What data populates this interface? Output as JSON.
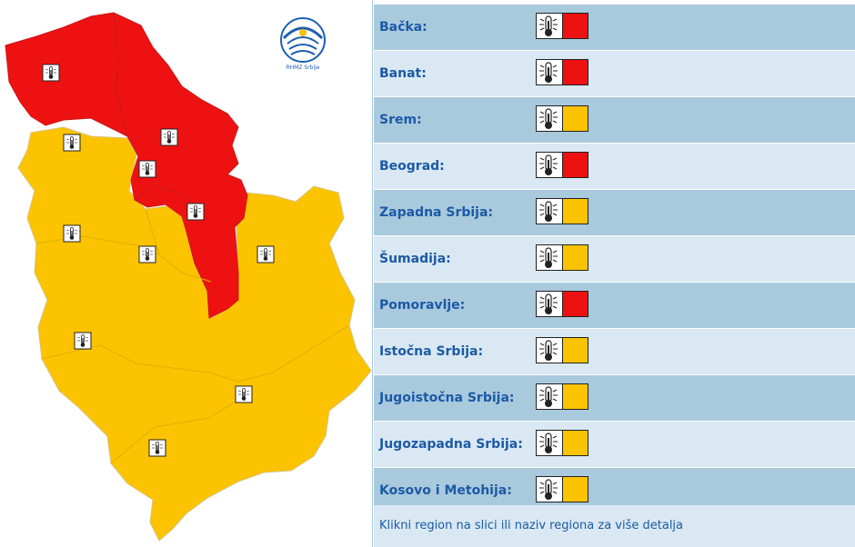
{
  "colors": {
    "red": "#ee1111",
    "orange": "#fcc300",
    "row_dark": "#a9c9dd",
    "row_light": "#d9e8f2",
    "label": "#1c5aa6"
  },
  "logo": {
    "text": "RHMZ Srbije"
  },
  "regions": [
    {
      "label": "Bačka:",
      "level": "red",
      "icon": "thermometer-icon"
    },
    {
      "label": "Banat:",
      "level": "red",
      "icon": "thermometer-icon"
    },
    {
      "label": "Srem:",
      "level": "orange",
      "icon": "thermometer-icon"
    },
    {
      "label": "Beograd:",
      "level": "red",
      "icon": "thermometer-icon"
    },
    {
      "label": "Zapadna Srbija:",
      "level": "orange",
      "icon": "thermometer-icon"
    },
    {
      "label": "Šumadija:",
      "level": "orange",
      "icon": "thermometer-icon"
    },
    {
      "label": "Pomoravlje:",
      "level": "red",
      "icon": "thermometer-icon"
    },
    {
      "label": "Istočna Srbija:",
      "level": "orange",
      "icon": "thermometer-icon"
    },
    {
      "label": "Jugoistočna Srbija:",
      "level": "orange",
      "icon": "thermometer-icon"
    },
    {
      "label": "Jugozapadna Srbija:",
      "level": "orange",
      "icon": "thermometer-icon"
    },
    {
      "label": "Kosovo i Metohija:",
      "level": "orange",
      "icon": "thermometer-icon"
    }
  ],
  "footer": {
    "text": "Klikni region na slici ili naziv regiona za više detalja"
  }
}
